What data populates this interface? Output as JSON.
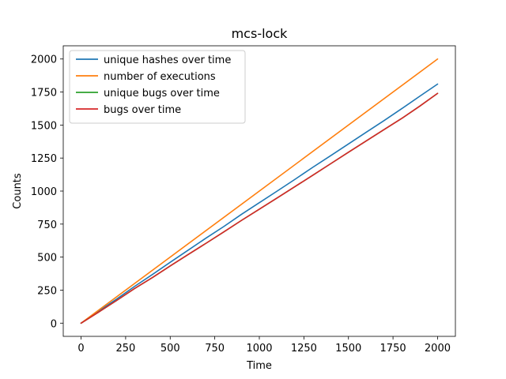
{
  "chart_data": {
    "type": "line",
    "title": "mcs-lock",
    "xlabel": "Time",
    "ylabel": "Counts",
    "xlim": [
      -100,
      2100
    ],
    "ylim": [
      -100,
      2100
    ],
    "xticks": [
      0,
      250,
      500,
      750,
      1000,
      1250,
      1500,
      1750,
      2000
    ],
    "yticks": [
      0,
      250,
      500,
      750,
      1000,
      1250,
      1500,
      1750,
      2000
    ],
    "legend_position": "top-left",
    "grid": false,
    "series": [
      {
        "name": "unique hashes over time",
        "color": "#1f77b4",
        "x": [
          0,
          100,
          200,
          300,
          400,
          500,
          600,
          700,
          800,
          900,
          1000,
          1100,
          1200,
          1300,
          1400,
          1500,
          1600,
          1700,
          1800,
          1900,
          2000
        ],
        "y": [
          0,
          92,
          183,
          278,
          368,
          461,
          552,
          643,
          731,
          824,
          912,
          1000,
          1089,
          1180,
          1268,
          1357,
          1446,
          1534,
          1625,
          1718,
          1810
        ]
      },
      {
        "name": "number of executions",
        "color": "#ff7f0e",
        "x": [
          0,
          2000
        ],
        "y": [
          0,
          2000
        ]
      },
      {
        "name": "unique bugs over time",
        "color": "#2ca02c",
        "x": [
          0,
          100,
          200,
          300,
          400,
          500,
          600,
          700,
          800,
          900,
          1000,
          1100,
          1200,
          1300,
          1400,
          1500,
          1600,
          1700,
          1800,
          1900,
          2000
        ],
        "y": [
          0,
          85,
          172,
          262,
          345,
          433,
          519,
          604,
          690,
          778,
          863,
          948,
          1034,
          1120,
          1207,
          1294,
          1380,
          1466,
          1551,
          1643,
          1740
        ]
      },
      {
        "name": "bugs over time",
        "color": "#d62728",
        "x": [
          0,
          100,
          200,
          300,
          400,
          500,
          600,
          700,
          800,
          900,
          1000,
          1100,
          1200,
          1300,
          1400,
          1500,
          1600,
          1700,
          1800,
          1900,
          2000
        ],
        "y": [
          0,
          85,
          172,
          262,
          345,
          433,
          519,
          604,
          690,
          778,
          863,
          948,
          1034,
          1120,
          1207,
          1294,
          1380,
          1466,
          1551,
          1643,
          1740
        ]
      }
    ]
  }
}
